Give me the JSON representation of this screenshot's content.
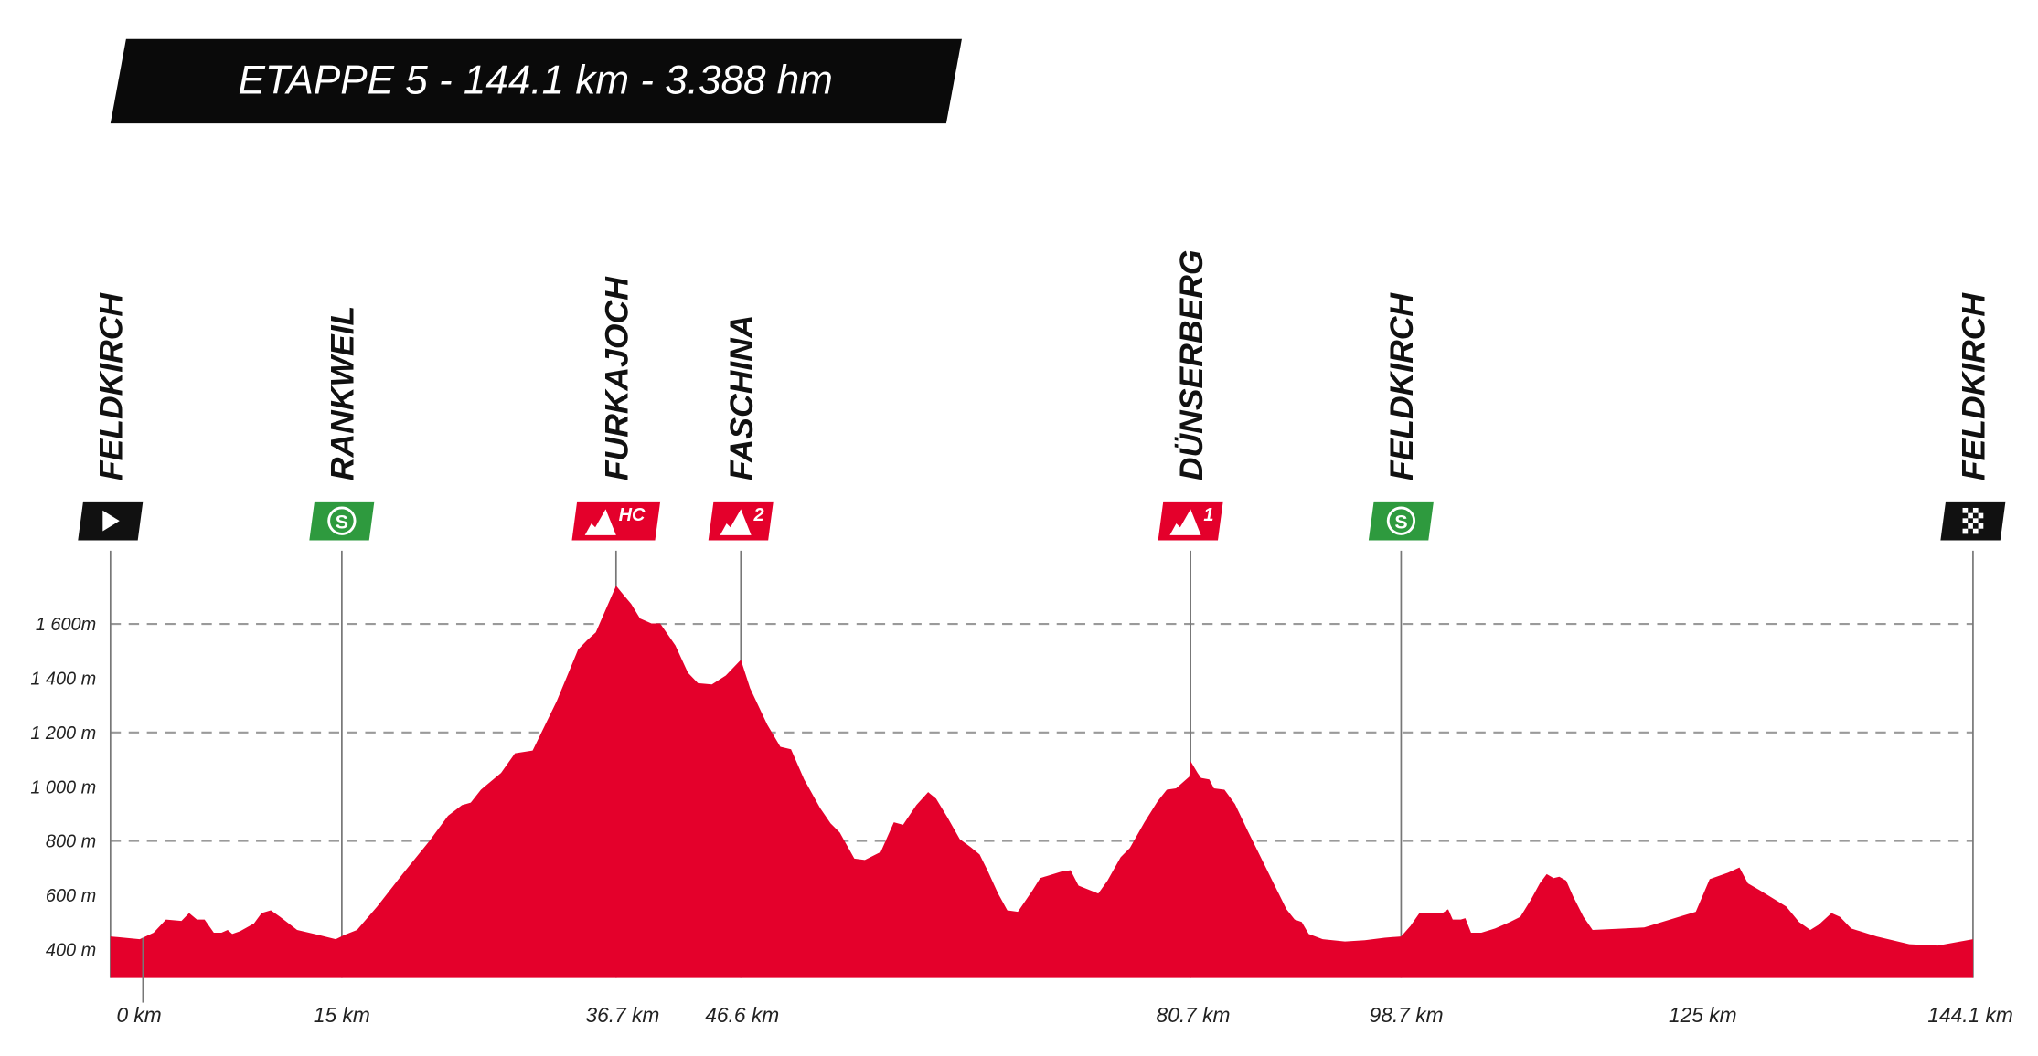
{
  "chart_data": {
    "type": "area",
    "title": "ETAPPE 5 - 144.1 km - 3.388 hm",
    "xlabel": "",
    "ylabel": "",
    "ylim": [
      295,
      1800
    ],
    "xlim": [
      0,
      144.1
    ],
    "grid": "horizontal dashed at 800m, 1200m, 1600m",
    "fill_color": "#e4002b",
    "yticks": [
      {
        "value": 400,
        "label": "400 m"
      },
      {
        "value": 600,
        "label": "600 m"
      },
      {
        "value": 800,
        "label": "800 m"
      },
      {
        "value": 1000,
        "label": "1 000 m"
      },
      {
        "value": 1200,
        "label": "1 200 m"
      },
      {
        "value": 1400,
        "label": "1 400 m"
      },
      {
        "value": 1600,
        "label": "1 600m"
      }
    ],
    "xticks": [
      {
        "value": 0,
        "label": "0 km"
      },
      {
        "value": 15,
        "label": "15 km"
      },
      {
        "value": 36.7,
        "label": "36.7 km"
      },
      {
        "value": 46.6,
        "label": "46.6 km"
      },
      {
        "value": 80.7,
        "label": "80.7 km"
      },
      {
        "value": 98.7,
        "label": "98.7 km"
      },
      {
        "value": 125,
        "label": "125 km"
      },
      {
        "value": 144.1,
        "label": "144.1 km"
      }
    ],
    "markers": [
      {
        "name": "FELDKIRCH",
        "km": 0,
        "type": "start",
        "color": "#111111"
      },
      {
        "name": "RANKWEIL",
        "km": 15,
        "type": "sprint",
        "color": "#2e9a3e"
      },
      {
        "name": "FURKAJOCH",
        "km": 36.7,
        "type": "climb",
        "category": "HC",
        "color": "#e4002b"
      },
      {
        "name": "FASCHINA",
        "km": 46.6,
        "type": "climb",
        "category": "2",
        "color": "#e4002b"
      },
      {
        "name": "DÜNSERBERG",
        "km": 80.7,
        "type": "climb",
        "category": "1",
        "color": "#e4002b"
      },
      {
        "name": "FELDKIRCH",
        "km": 98.7,
        "type": "sprint",
        "color": "#2e9a3e"
      },
      {
        "name": "FELDKIRCH",
        "km": 144.1,
        "type": "finish",
        "color": "#111111"
      }
    ],
    "profile": [
      [
        0,
        448
      ],
      [
        1.9,
        438
      ],
      [
        2.8,
        462
      ],
      [
        3.6,
        510
      ],
      [
        4.6,
        505
      ],
      [
        5.1,
        534
      ],
      [
        5.6,
        510
      ],
      [
        6.1,
        510
      ],
      [
        6.7,
        462
      ],
      [
        7.2,
        462
      ],
      [
        7.6,
        472
      ],
      [
        7.9,
        457
      ],
      [
        8.4,
        467
      ],
      [
        9.3,
        496
      ],
      [
        9.8,
        534
      ],
      [
        10.4,
        544
      ],
      [
        11.0,
        520
      ],
      [
        12.1,
        472
      ],
      [
        13.5,
        453
      ],
      [
        14.6,
        438
      ],
      [
        15.2,
        453
      ],
      [
        16.2,
        472
      ],
      [
        17.8,
        558
      ],
      [
        19.8,
        678
      ],
      [
        21.9,
        798
      ],
      [
        23.4,
        893
      ],
      [
        24.5,
        932
      ],
      [
        25.2,
        941
      ],
      [
        26.0,
        989
      ],
      [
        27.6,
        1051
      ],
      [
        28.7,
        1123
      ],
      [
        30.1,
        1133
      ],
      [
        32.0,
        1315
      ],
      [
        33.7,
        1506
      ],
      [
        34.4,
        1540
      ],
      [
        35.1,
        1569
      ],
      [
        36.7,
        1741
      ],
      [
        37.3,
        1707
      ],
      [
        37.9,
        1674
      ],
      [
        38.6,
        1621
      ],
      [
        39.5,
        1602
      ],
      [
        40.2,
        1602
      ],
      [
        41.4,
        1521
      ],
      [
        42.4,
        1420
      ],
      [
        43.2,
        1382
      ],
      [
        44.3,
        1377
      ],
      [
        45.4,
        1410
      ],
      [
        46.6,
        1468
      ],
      [
        47.3,
        1363
      ],
      [
        48.6,
        1229
      ],
      [
        49.6,
        1147
      ],
      [
        50.4,
        1138
      ],
      [
        51.4,
        1027
      ],
      [
        52.6,
        922
      ],
      [
        53.4,
        865
      ],
      [
        54.1,
        831
      ],
      [
        55.2,
        735
      ],
      [
        56.0,
        730
      ],
      [
        57.2,
        759
      ],
      [
        58.2,
        869
      ],
      [
        58.9,
        860
      ],
      [
        59.9,
        932
      ],
      [
        60.8,
        980
      ],
      [
        61.4,
        956
      ],
      [
        62.3,
        884
      ],
      [
        63.2,
        807
      ],
      [
        64.0,
        778
      ],
      [
        64.7,
        750
      ],
      [
        65.3,
        692
      ],
      [
        66.1,
        606
      ],
      [
        66.8,
        544
      ],
      [
        67.6,
        539
      ],
      [
        68.7,
        616
      ],
      [
        69.3,
        663
      ],
      [
        70.9,
        687
      ],
      [
        71.6,
        692
      ],
      [
        72.2,
        635
      ],
      [
        73.7,
        606
      ],
      [
        74.4,
        654
      ],
      [
        75.4,
        740
      ],
      [
        76.1,
        774
      ],
      [
        77.2,
        869
      ],
      [
        78.2,
        946
      ],
      [
        78.9,
        989
      ],
      [
        79.6,
        994
      ],
      [
        80.6,
        1037
      ],
      [
        80.7,
        1094
      ],
      [
        81.3,
        1051
      ],
      [
        81.6,
        1032
      ],
      [
        82.3,
        1027
      ],
      [
        82.7,
        994
      ],
      [
        83.6,
        989
      ],
      [
        84.5,
        936
      ],
      [
        85.6,
        836
      ],
      [
        86.7,
        740
      ],
      [
        87.8,
        644
      ],
      [
        88.9,
        548
      ],
      [
        89.6,
        510
      ],
      [
        90.2,
        501
      ],
      [
        90.8,
        457
      ],
      [
        92.0,
        438
      ],
      [
        93.9,
        429
      ],
      [
        95.6,
        434
      ],
      [
        97.3,
        443
      ],
      [
        98.7,
        448
      ],
      [
        99.5,
        486
      ],
      [
        100.3,
        534
      ],
      [
        101.8,
        534
      ],
      [
        102.3,
        534
      ],
      [
        102.8,
        548
      ],
      [
        103.2,
        510
      ],
      [
        103.9,
        510
      ],
      [
        104.3,
        515
      ],
      [
        104.8,
        462
      ],
      [
        105.7,
        462
      ],
      [
        106.9,
        477
      ],
      [
        108.2,
        501
      ],
      [
        109.1,
        520
      ],
      [
        110.0,
        582
      ],
      [
        110.8,
        644
      ],
      [
        111.4,
        678
      ],
      [
        112.0,
        663
      ],
      [
        112.5,
        668
      ],
      [
        113.1,
        654
      ],
      [
        113.7,
        596
      ],
      [
        114.6,
        520
      ],
      [
        115.4,
        472
      ],
      [
        119.9,
        481
      ],
      [
        123.3,
        525
      ],
      [
        124.4,
        539
      ],
      [
        125.5,
        659
      ],
      [
        126.8,
        683
      ],
      [
        127.6,
        702
      ],
      [
        128.2,
        644
      ],
      [
        129.1,
        616
      ],
      [
        130.9,
        558
      ],
      [
        131.8,
        501
      ],
      [
        132.6,
        472
      ],
      [
        133.2,
        491
      ],
      [
        134.1,
        534
      ],
      [
        134.7,
        520
      ],
      [
        135.5,
        477
      ],
      [
        137.3,
        448
      ],
      [
        139.6,
        419
      ],
      [
        141.6,
        414
      ],
      [
        144.1,
        438
      ]
    ]
  }
}
